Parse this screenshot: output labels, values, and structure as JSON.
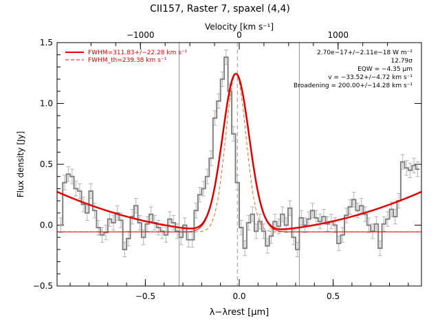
{
  "colors": {
    "fit": "#e00000",
    "data": "#808080",
    "errorbar": "#b4b4b4",
    "axes": "#000000",
    "marker": "#909090"
  },
  "chart_data": {
    "type": "line",
    "title": "CII157, Raster 7, spaxel (4,4)",
    "xlabel": "λ−λrest [μm]",
    "ylabel": "Flux density [Jy]",
    "top_xlabel": "Velocity [km s⁻¹]",
    "xlim": [
      -0.97,
      0.97
    ],
    "ylim": [
      -0.5,
      1.5
    ],
    "x_ticks": [
      -0.5,
      0.0,
      0.5
    ],
    "x_tick_labels": [
      "−0.5",
      "0.0",
      "0.5"
    ],
    "y_ticks": [
      -0.5,
      0.0,
      0.5,
      1.0,
      1.5
    ],
    "y_tick_labels": [
      "−0.5",
      "0.0",
      "0.5",
      "1.0",
      "1.5"
    ],
    "top_ticks_km_s": [
      -1000,
      0,
      1000
    ],
    "top_tick_labels": [
      "−1000",
      "0",
      "1000"
    ],
    "vertical_lines_x": [
      -0.32,
      0.32
    ],
    "dashed_center_x": -0.01,
    "grid": false,
    "legend_position": "top-left",
    "legend": [
      {
        "label": "FWHM=311.83+/−22.28 km s⁻¹",
        "style": "solid"
      },
      {
        "label": "FWHM_th=239.38 km s⁻¹",
        "style": "dashed"
      }
    ],
    "annotations": [
      "2.70e−17+/−2.11e−18 W m⁻²",
      "12.79σ",
      "EQW = −4.35 μm",
      "v = −33.52+/−4.72 km s⁻¹",
      "Broadening = 200.00+/−14.28 km s⁻¹"
    ],
    "series": [
      {
        "style": "histogram",
        "x": [
          -0.95,
          -0.93,
          -0.91,
          -0.89,
          -0.87,
          -0.85,
          -0.83,
          -0.81,
          -0.79,
          -0.77,
          -0.75,
          -0.73,
          -0.71,
          -0.69,
          -0.67,
          -0.65,
          -0.63,
          -0.61,
          -0.59,
          -0.57,
          -0.55,
          -0.53,
          -0.51,
          -0.49,
          -0.47,
          -0.45,
          -0.43,
          -0.41,
          -0.39,
          -0.37,
          -0.35,
          -0.33,
          -0.31,
          -0.29,
          -0.27,
          -0.25,
          -0.23,
          -0.21,
          -0.19,
          -0.17,
          -0.15,
          -0.13,
          -0.11,
          -0.09,
          -0.07,
          -0.05,
          -0.03,
          -0.01,
          0.01,
          0.03,
          0.05,
          0.07,
          0.09,
          0.11,
          0.13,
          0.15,
          0.17,
          0.19,
          0.21,
          0.23,
          0.25,
          0.27,
          0.29,
          0.31,
          0.33,
          0.35,
          0.37,
          0.39,
          0.41,
          0.43,
          0.45,
          0.47,
          0.49,
          0.51,
          0.53,
          0.55,
          0.57,
          0.59,
          0.61,
          0.63,
          0.65,
          0.67,
          0.69,
          0.71,
          0.73,
          0.75,
          0.77,
          0.79,
          0.81,
          0.83,
          0.85,
          0.87,
          0.89,
          0.91,
          0.93,
          0.95
        ],
        "y": [
          0.0,
          0.35,
          0.42,
          0.4,
          0.3,
          0.28,
          0.17,
          0.1,
          0.28,
          0.12,
          -0.02,
          -0.08,
          -0.06,
          0.05,
          0.02,
          0.1,
          0.04,
          -0.2,
          -0.11,
          0.07,
          0.16,
          0.02,
          -0.1,
          0.01,
          0.09,
          0.02,
          -0.02,
          -0.05,
          -0.08,
          0.05,
          0.02,
          -0.05,
          -0.1,
          0.0,
          -0.12,
          -0.12,
          0.12,
          0.25,
          0.3,
          0.4,
          0.55,
          0.88,
          1.02,
          1.2,
          1.38,
          1.1,
          0.75,
          0.35,
          -0.02,
          -0.19,
          0.02,
          0.09,
          -0.05,
          0.03,
          -0.05,
          -0.17,
          -0.09,
          0.03,
          -0.01,
          0.09,
          0.0,
          0.14,
          -0.1,
          -0.2,
          0.06,
          0.0,
          0.05,
          0.12,
          0.06,
          0.03,
          0.07,
          0.01,
          0.03,
          0.0,
          -0.15,
          -0.08,
          0.08,
          0.15,
          0.21,
          0.12,
          0.16,
          0.09,
          0.0,
          -0.05,
          0.01,
          -0.19,
          0.01,
          0.05,
          0.13,
          0.07,
          0.2,
          0.52,
          0.47,
          0.45,
          0.49,
          0.46
        ],
        "yerr": 0.06
      },
      {
        "style": "solid",
        "description_of_curve": "continuum + gaussian fit"
      },
      {
        "style": "dashed",
        "description_of_curve": "instrumental profile"
      }
    ]
  }
}
